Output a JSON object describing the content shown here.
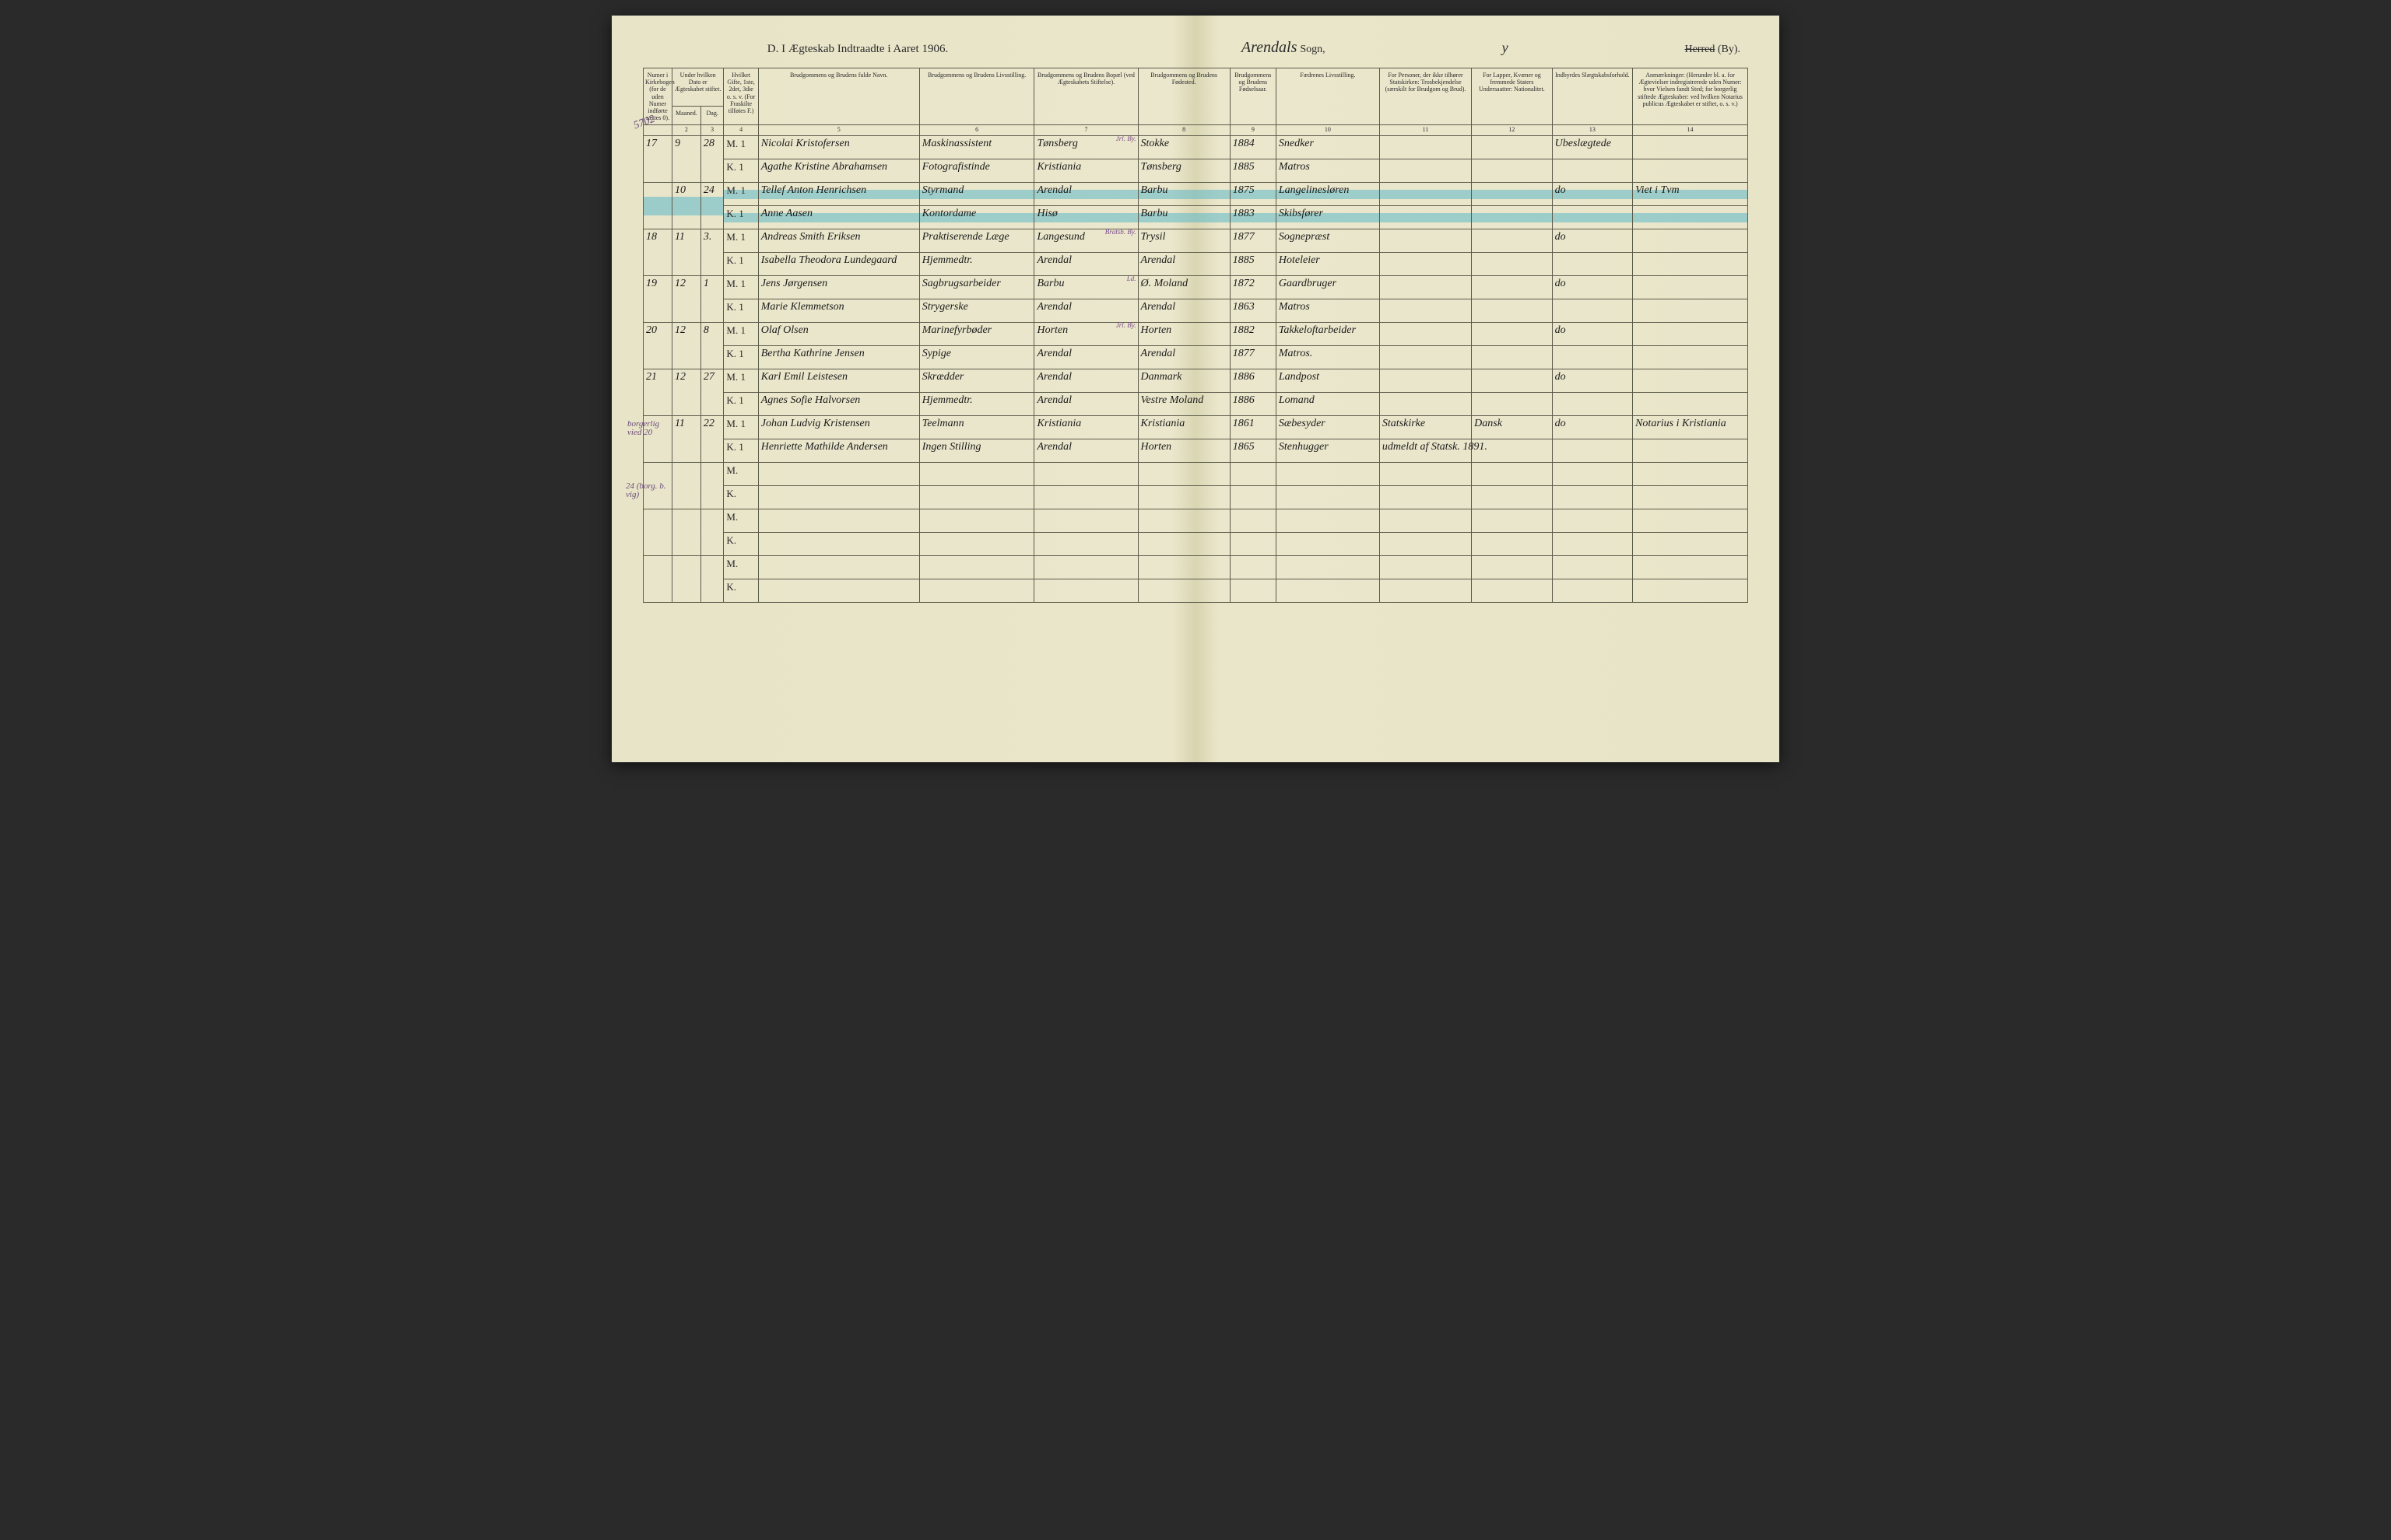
{
  "title": {
    "left": "D. I Ægteskab Indtraadte i Aaret 1906.",
    "parish_handwritten": "Arendals",
    "sogn_label": "Sogn,",
    "herred_strike": "Herred",
    "by_label": "(By)."
  },
  "margin_notes": {
    "top_left": "5702",
    "row22_left": "borgerlig vied 20",
    "row24_left": "24 (borg. b. vig)"
  },
  "headers": {
    "c1": "Numer i Kirkebogen (for de uden Numer indførte sættes 0).",
    "c2_3": "Under hvilken Dato er Ægteskabet stiftet.",
    "c2": "Maaned.",
    "c3": "Dag.",
    "c4": "Hvilket Gifte, 1ste, 2det, 3die o. s. v. (For Fraskilte tilføies F.)",
    "c5": "Brudgommens og Brudens fulde Navn.",
    "c6": "Brudgommens og Brudens Livsstilling.",
    "c7": "Brudgommens og Brudens Bopæl (ved Ægteskabets Stiftelse).",
    "c8": "Brudgommens og Brudens Fødested.",
    "c9": "Brudgommens og Brudens Fødselsaar.",
    "c10": "Fædrenes Livsstilling.",
    "c11": "For Personer, der ikke tilhører Statskirken: Trosbekjendelse (særskilt for Brudgom og Brud).",
    "c12": "For Lapper, Kvæner og fremmede Staters Undersaatter: Nationalitet.",
    "c13": "Indbyrdes Slægtskabsforhold.",
    "c14": "Anmærkninger: (Herunder bl. a. for Ægtevielser indregistrerede uden Numer: hvor Vielsen fandt Sted; for borgerlig stiftede Ægteskaber: ved hvilken Notarius publicus Ægteskabet er stiftet, o. s. v.)"
  },
  "colnums": [
    "",
    "2",
    "3",
    "4",
    "5",
    "6",
    "7",
    "8",
    "9",
    "10",
    "11",
    "12",
    "13",
    "14"
  ],
  "purple_annotations": {
    "r17_c7": "Jrl. By.",
    "r18_c7": "Bratsb. By.",
    "r19_c7": "Ld.",
    "r20_c7": "Jrl. By."
  },
  "rows": [
    {
      "num": "17",
      "month": "9",
      "day": "28",
      "mk": "M. 1",
      "name": "Nicolai Kristofersen",
      "occ": "Maskinassistent",
      "res": "Tønsberg",
      "birthplace": "Stokke",
      "year": "1884",
      "father": "Snedker",
      "c11": "",
      "c12": "",
      "rel": "Ubeslægtede",
      "notes": ""
    },
    {
      "num": "",
      "month": "",
      "day": "",
      "mk": "K. 1",
      "name": "Agathe Kristine Abrahamsen",
      "occ": "Fotografistinde",
      "res": "Kristiania",
      "birthplace": "Tønsberg",
      "year": "1885",
      "father": "Matros",
      "c11": "",
      "c12": "",
      "rel": "",
      "notes": ""
    },
    {
      "num": "",
      "month": "10",
      "day": "24",
      "mk": "M. 1",
      "name": "Tellef Anton Henrichsen",
      "occ": "Styrmand",
      "res": "Arendal",
      "birthplace": "Barbu",
      "year": "1875",
      "father": "Langelinesløren",
      "c11": "",
      "c12": "",
      "rel": "do",
      "notes": "Viet i Tvm",
      "hl": true
    },
    {
      "num": "",
      "month": "",
      "day": "",
      "mk": "K. 1",
      "name": "Anne Aasen",
      "occ": "Kontordame",
      "res": "Hisø",
      "birthplace": "Barbu",
      "year": "1883",
      "father": "Skibsfører",
      "c11": "",
      "c12": "",
      "rel": "",
      "notes": "",
      "hl": true
    },
    {
      "num": "18",
      "month": "11",
      "day": "3.",
      "mk": "M. 1",
      "name": "Andreas Smith Eriksen",
      "occ": "Praktiserende Læge",
      "res": "Langesund",
      "birthplace": "Trysil",
      "year": "1877",
      "father": "Sognepræst",
      "c11": "",
      "c12": "",
      "rel": "do",
      "notes": ""
    },
    {
      "num": "",
      "month": "",
      "day": "",
      "mk": "K. 1",
      "name": "Isabella Theodora Lundegaard",
      "occ": "Hjemmedtr.",
      "res": "Arendal",
      "birthplace": "Arendal",
      "year": "1885",
      "father": "Hoteleier",
      "c11": "",
      "c12": "",
      "rel": "",
      "notes": ""
    },
    {
      "num": "19",
      "month": "12",
      "day": "1",
      "mk": "M. 1",
      "name": "Jens Jørgensen",
      "occ": "Sagbrugsarbeider",
      "res": "Barbu",
      "birthplace": "Ø. Moland",
      "year": "1872",
      "father": "Gaardbruger",
      "c11": "",
      "c12": "",
      "rel": "do",
      "notes": ""
    },
    {
      "num": "",
      "month": "",
      "day": "",
      "mk": "K. 1",
      "name": "Marie Klemmetson",
      "occ": "Strygerske",
      "res": "Arendal",
      "birthplace": "Arendal",
      "year": "1863",
      "father": "Matros",
      "c11": "",
      "c12": "",
      "rel": "",
      "notes": ""
    },
    {
      "num": "20",
      "month": "12",
      "day": "8",
      "mk": "M. 1",
      "name": "Olaf Olsen",
      "occ": "Marinefyrbøder",
      "res": "Horten",
      "birthplace": "Horten",
      "year": "1882",
      "father": "Takkeloftarbeider",
      "c11": "",
      "c12": "",
      "rel": "do",
      "notes": ""
    },
    {
      "num": "",
      "month": "",
      "day": "",
      "mk": "K. 1",
      "name": "Bertha Kathrine Jensen",
      "occ": "Sypige",
      "res": "Arendal",
      "birthplace": "Arendal",
      "year": "1877",
      "father": "Matros.",
      "c11": "",
      "c12": "",
      "rel": "",
      "notes": ""
    },
    {
      "num": "21",
      "month": "12",
      "day": "27",
      "mk": "M. 1",
      "name": "Karl Emil Leistesen",
      "occ": "Skrædder",
      "res": "Arendal",
      "birthplace": "Danmark",
      "year": "1886",
      "father": "Landpost",
      "c11": "",
      "c12": "",
      "rel": "do",
      "notes": ""
    },
    {
      "num": "",
      "month": "",
      "day": "",
      "mk": "K. 1",
      "name": "Agnes Sofie Halvorsen",
      "occ": "Hjemmedtr.",
      "res": "Arendal",
      "birthplace": "Vestre Moland",
      "year": "1886",
      "father": "Lomand",
      "c11": "",
      "c12": "",
      "rel": "",
      "notes": ""
    },
    {
      "num": "",
      "month": "11",
      "day": "22",
      "mk": "M. 1",
      "name": "Johan Ludvig Kristensen",
      "occ": "Teelmann",
      "res": "Kristiania",
      "birthplace": "Kristiania",
      "year": "1861",
      "father": "Sæbesyder",
      "c11": "Statskirke",
      "c12": "Dansk",
      "rel": "do",
      "notes": "Notarius i Kristiania"
    },
    {
      "num": "",
      "month": "",
      "day": "",
      "mk": "K. 1",
      "name": "Henriette Mathilde Andersen",
      "occ": "Ingen Stilling",
      "res": "Arendal",
      "birthplace": "Horten",
      "year": "1865",
      "father": "Stenhugger",
      "c11": "udmeldt af Statsk. 1891.",
      "c12": "",
      "rel": "",
      "notes": ""
    },
    {
      "num": "",
      "month": "",
      "day": "",
      "mk": "M.",
      "name": "",
      "occ": "",
      "res": "",
      "birthplace": "",
      "year": "",
      "father": "",
      "c11": "",
      "c12": "",
      "rel": "",
      "notes": ""
    },
    {
      "num": "",
      "month": "",
      "day": "",
      "mk": "K.",
      "name": "",
      "occ": "",
      "res": "",
      "birthplace": "",
      "year": "",
      "father": "",
      "c11": "",
      "c12": "",
      "rel": "",
      "notes": ""
    },
    {
      "num": "",
      "month": "",
      "day": "",
      "mk": "M.",
      "name": "",
      "occ": "",
      "res": "",
      "birthplace": "",
      "year": "",
      "father": "",
      "c11": "",
      "c12": "",
      "rel": "",
      "notes": ""
    },
    {
      "num": "",
      "month": "",
      "day": "",
      "mk": "K.",
      "name": "",
      "occ": "",
      "res": "",
      "birthplace": "",
      "year": "",
      "father": "",
      "c11": "",
      "c12": "",
      "rel": "",
      "notes": ""
    },
    {
      "num": "",
      "month": "",
      "day": "",
      "mk": "M.",
      "name": "",
      "occ": "",
      "res": "",
      "birthplace": "",
      "year": "",
      "father": "",
      "c11": "",
      "c12": "",
      "rel": "",
      "notes": ""
    },
    {
      "num": "",
      "month": "",
      "day": "",
      "mk": "K.",
      "name": "",
      "occ": "",
      "res": "",
      "birthplace": "",
      "year": "",
      "father": "",
      "c11": "",
      "c12": "",
      "rel": "",
      "notes": ""
    }
  ],
  "colors": {
    "page_bg": "#e8e4c8",
    "border": "#5a5a4a",
    "highlight": "rgba(80,180,200,0.5)",
    "purple_ink": "#7a4a8a"
  }
}
